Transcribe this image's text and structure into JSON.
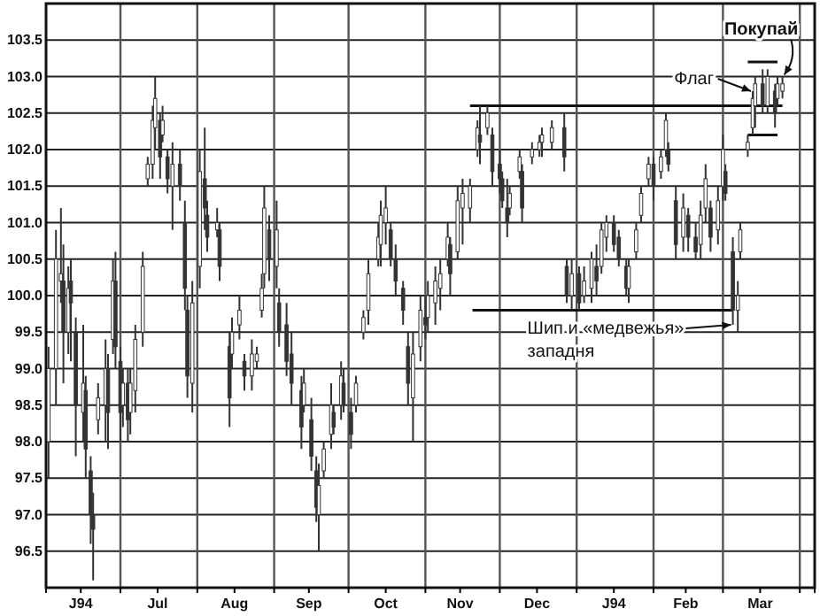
{
  "chart_data": {
    "type": "candlestick",
    "x": [
      "1993-06-02",
      "1993-06-05",
      "1993-06-07",
      "1993-06-08",
      "1993-06-10",
      "1993-06-11",
      "1993-06-13",
      "1993-06-16",
      "1993-06-17",
      "1993-06-19",
      "1993-06-20",
      "1993-06-22",
      "1993-06-25",
      "1993-06-26",
      "1993-06-28",
      "1993-06-29",
      "1993-07-01",
      "1993-07-02",
      "1993-07-04",
      "1993-07-05",
      "1993-07-07",
      "1993-07-10",
      "1993-07-12",
      "1993-07-14",
      "1993-07-15",
      "1993-07-17",
      "1993-07-18",
      "1993-07-20",
      "1993-07-22",
      "1993-07-25",
      "1993-07-27",
      "1993-07-28",
      "1993-07-30",
      "1993-08-02",
      "1993-08-04",
      "1993-08-05",
      "1993-08-09",
      "1993-08-10",
      "1993-08-14",
      "1993-08-15",
      "1993-08-18",
      "1993-08-20",
      "1993-08-23",
      "1993-08-25",
      "1993-08-27",
      "1993-08-28",
      "1993-08-30",
      "1993-09-02",
      "1993-09-03",
      "1993-09-06",
      "1993-09-08",
      "1993-09-12",
      "1993-09-13",
      "1993-09-16",
      "1993-09-18",
      "1993-09-19",
      "1993-09-21",
      "1993-09-24",
      "1993-09-25",
      "1993-09-28",
      "1993-09-29",
      "1993-10-02",
      "1993-10-04",
      "1993-10-07",
      "1993-10-09",
      "1993-10-13",
      "1993-10-14",
      "1993-10-16",
      "1993-10-18",
      "1993-10-20",
      "1993-10-23",
      "1993-10-25",
      "1993-10-27",
      "1993-10-30",
      "1993-11-01",
      "1993-11-02",
      "1993-11-05",
      "1993-11-07",
      "1993-11-10",
      "1993-11-11",
      "1993-11-14",
      "1993-11-16",
      "1993-11-19",
      "1993-11-22",
      "1993-11-23",
      "1993-11-26",
      "1993-11-28",
      "1993-12-01",
      "1993-12-02",
      "1993-12-04",
      "1993-12-05",
      "1993-12-09",
      "1993-12-10",
      "1993-12-14",
      "1993-12-17",
      "1993-12-18",
      "1993-12-22",
      "1993-12-27",
      "1993-12-28",
      "1993-12-30",
      "1994-01-02",
      "1994-01-04",
      "1994-01-07",
      "1994-01-09",
      "1994-01-11",
      "1994-01-13",
      "1994-01-16",
      "1994-01-18",
      "1994-01-21",
      "1994-01-22",
      "1994-01-25",
      "1994-01-27",
      "1994-01-30",
      "1994-02-01",
      "1994-02-04",
      "1994-02-06",
      "1994-02-07",
      "1994-02-10",
      "1994-02-13",
      "1994-02-15",
      "1994-02-18",
      "1994-02-20",
      "1994-02-22",
      "1994-02-24",
      "1994-02-27",
      "1994-03-01",
      "1994-03-02",
      "1994-03-05",
      "1994-03-07",
      "1994-03-08",
      "1994-03-11",
      "1994-03-13",
      "1994-03-14",
      "1994-03-17",
      "1994-03-19",
      "1994-03-22",
      "1994-03-23",
      "1994-03-25"
    ],
    "ohlc": [
      [
        98.0,
        99.3,
        97.5,
        99.0
      ],
      [
        99.0,
        100.9,
        98.5,
        100.5
      ],
      [
        100.2,
        101.2,
        99.9,
        100.3
      ],
      [
        100.2,
        100.7,
        98.8,
        99.5
      ],
      [
        99.5,
        100.4,
        99.2,
        100.1
      ],
      [
        100.2,
        100.5,
        99.1,
        99.9
      ],
      [
        99.5,
        99.7,
        97.8,
        98.5
      ],
      [
        98.4,
        99.6,
        98.0,
        98.8
      ],
      [
        98.7,
        98.9,
        97.5,
        97.9
      ],
      [
        97.6,
        97.8,
        96.6,
        97.0
      ],
      [
        97.0,
        97.3,
        96.1,
        96.8
      ],
      [
        98.3,
        98.8,
        98.1,
        98.6
      ],
      [
        98.5,
        99.4,
        98.0,
        99.0
      ],
      [
        99.0,
        99.2,
        97.9,
        98.4
      ],
      [
        99.4,
        100.5,
        99.2,
        100.2
      ],
      [
        100.2,
        100.6,
        99.0,
        99.3
      ],
      [
        99.1,
        99.3,
        98.0,
        98.4
      ],
      [
        98.5,
        99.0,
        98.2,
        98.8
      ],
      [
        98.8,
        99.0,
        98.0,
        98.3
      ],
      [
        98.4,
        99.0,
        98.1,
        98.8
      ],
      [
        98.7,
        99.6,
        98.4,
        99.4
      ],
      [
        99.5,
        100.6,
        99.3,
        100.4
      ],
      [
        101.6,
        101.9,
        101.5,
        101.8
      ],
      [
        101.8,
        102.6,
        101.6,
        102.4
      ],
      [
        102.3,
        103.0,
        102.0,
        102.7
      ],
      [
        102.4,
        102.5,
        101.6,
        101.9
      ],
      [
        102.2,
        102.6,
        102.1,
        102.4
      ],
      [
        101.9,
        102.0,
        101.4,
        101.6
      ],
      [
        101.5,
        102.1,
        100.9,
        101.8
      ],
      [
        101.8,
        102.0,
        101.3,
        101.5
      ],
      [
        101.0,
        101.3,
        99.8,
        100.1
      ],
      [
        99.8,
        100.0,
        98.6,
        98.9
      ],
      [
        98.8,
        100.2,
        98.4,
        99.9
      ],
      [
        100.4,
        102.0,
        100.1,
        101.7
      ],
      [
        101.6,
        102.3,
        100.9,
        101.2
      ],
      [
        101.1,
        101.3,
        100.6,
        100.8
      ],
      [
        100.9,
        101.2,
        100.8,
        101.0
      ],
      [
        100.9,
        101.0,
        100.2,
        100.4
      ],
      [
        99.3,
        99.5,
        98.2,
        98.6
      ],
      [
        99.2,
        99.7,
        99.0,
        99.5
      ],
      [
        99.6,
        100.0,
        99.4,
        99.8
      ],
      [
        99.1,
        99.2,
        98.7,
        98.9
      ],
      [
        98.9,
        99.4,
        98.7,
        99.2
      ],
      [
        99.1,
        99.3,
        99.0,
        99.2
      ],
      [
        99.8,
        100.3,
        99.7,
        100.1
      ],
      [
        100.3,
        101.5,
        100.1,
        101.2
      ],
      [
        100.9,
        101.1,
        100.2,
        100.5
      ],
      [
        100.4,
        101.3,
        100.1,
        100.9
      ],
      [
        99.9,
        100.1,
        99.3,
        99.5
      ],
      [
        99.6,
        99.9,
        98.9,
        99.1
      ],
      [
        99.2,
        99.5,
        98.5,
        98.8
      ],
      [
        98.7,
        98.9,
        97.9,
        98.2
      ],
      [
        98.5,
        99.0,
        98.4,
        98.8
      ],
      [
        98.3,
        98.6,
        97.6,
        97.8
      ],
      [
        97.6,
        97.8,
        96.9,
        97.1
      ],
      [
        97.0,
        97.7,
        96.5,
        97.4
      ],
      [
        97.6,
        98.0,
        97.5,
        97.9
      ],
      [
        98.1,
        98.8,
        97.9,
        98.5
      ],
      [
        98.4,
        98.5,
        98.1,
        98.2
      ],
      [
        98.5,
        99.1,
        98.3,
        98.9
      ],
      [
        98.8,
        99.0,
        98.4,
        98.5
      ],
      [
        98.4,
        98.6,
        97.9,
        98.1
      ],
      [
        98.5,
        98.9,
        98.4,
        98.8
      ],
      [
        99.5,
        99.8,
        99.4,
        99.7
      ],
      [
        99.8,
        100.5,
        99.6,
        100.3
      ],
      [
        100.5,
        101.0,
        100.4,
        100.8
      ],
      [
        100.7,
        101.3,
        100.4,
        101.1
      ],
      [
        101.0,
        101.5,
        100.7,
        101.2
      ],
      [
        100.9,
        101.0,
        100.4,
        100.5
      ],
      [
        100.5,
        100.7,
        100.0,
        100.2
      ],
      [
        100.1,
        100.2,
        99.6,
        99.8
      ],
      [
        99.3,
        99.5,
        98.5,
        98.8
      ],
      [
        98.6,
        99.5,
        98.0,
        99.2
      ],
      [
        99.3,
        100.0,
        99.1,
        99.8
      ],
      [
        99.7,
        100.0,
        99.4,
        99.6
      ],
      [
        99.7,
        100.2,
        99.5,
        100.0
      ],
      [
        99.9,
        100.4,
        99.6,
        100.2
      ],
      [
        100.1,
        100.5,
        99.8,
        100.3
      ],
      [
        100.5,
        101.0,
        100.4,
        100.8
      ],
      [
        100.7,
        100.8,
        100.0,
        100.3
      ],
      [
        100.6,
        101.5,
        100.5,
        101.3
      ],
      [
        101.2,
        101.6,
        100.7,
        101.4
      ],
      [
        101.2,
        101.6,
        101.0,
        101.5
      ],
      [
        102.0,
        102.4,
        101.9,
        102.3
      ],
      [
        102.2,
        102.6,
        101.8,
        102.1
      ],
      [
        102.3,
        102.6,
        102.2,
        102.5
      ],
      [
        102.2,
        102.3,
        101.5,
        101.7
      ],
      [
        101.8,
        102.0,
        101.4,
        101.6
      ],
      [
        101.6,
        101.7,
        101.2,
        101.3
      ],
      [
        101.2,
        101.6,
        100.8,
        101.0
      ],
      [
        101.2,
        101.5,
        101.1,
        101.4
      ],
      [
        101.7,
        102.0,
        101.6,
        101.9
      ],
      [
        101.7,
        101.8,
        101.0,
        101.2
      ],
      [
        101.9,
        102.1,
        101.8,
        102.0
      ],
      [
        102.0,
        102.2,
        101.9,
        102.1
      ],
      [
        102.1,
        102.3,
        101.9,
        102.2
      ],
      [
        102.1,
        102.4,
        102.0,
        102.3
      ],
      [
        102.3,
        102.5,
        101.7,
        101.9
      ],
      [
        100.4,
        100.5,
        99.9,
        100.0
      ],
      [
        100.0,
        100.5,
        99.8,
        100.3
      ],
      [
        100.3,
        100.4,
        99.8,
        99.9
      ],
      [
        100.0,
        100.4,
        99.9,
        100.2
      ],
      [
        100.1,
        100.6,
        99.9,
        100.5
      ],
      [
        100.4,
        100.7,
        100.0,
        100.2
      ],
      [
        100.4,
        101.0,
        100.3,
        100.9
      ],
      [
        100.8,
        101.1,
        100.6,
        101.0
      ],
      [
        101.0,
        101.1,
        100.6,
        100.7
      ],
      [
        100.8,
        100.9,
        100.4,
        100.5
      ],
      [
        100.4,
        100.5,
        100.0,
        100.1
      ],
      [
        100.1,
        100.5,
        99.9,
        100.4
      ],
      [
        100.6,
        101.0,
        100.5,
        100.9
      ],
      [
        101.1,
        101.5,
        101.0,
        101.4
      ],
      [
        101.6,
        101.9,
        101.5,
        101.8
      ],
      [
        101.8,
        101.9,
        101.3,
        101.5
      ],
      [
        101.7,
        102.0,
        101.6,
        101.9
      ],
      [
        102.0,
        102.5,
        101.9,
        102.4
      ],
      [
        102.0,
        102.1,
        101.7,
        101.8
      ],
      [
        101.3,
        101.5,
        100.5,
        100.7
      ],
      [
        100.8,
        101.4,
        100.6,
        101.2
      ],
      [
        101.1,
        101.2,
        100.6,
        100.8
      ],
      [
        100.8,
        101.0,
        100.5,
        100.6
      ],
      [
        100.7,
        101.3,
        100.5,
        101.1
      ],
      [
        101.2,
        101.8,
        101.0,
        101.6
      ],
      [
        101.2,
        101.3,
        100.6,
        100.8
      ],
      [
        100.9,
        101.5,
        100.7,
        101.3
      ],
      [
        101.5,
        102.2,
        101.3,
        102.0
      ],
      [
        101.7,
        101.8,
        101.3,
        101.4
      ],
      [
        100.6,
        100.8,
        99.6,
        99.8
      ],
      [
        99.8,
        100.2,
        99.5,
        100.0
      ],
      [
        100.6,
        101.0,
        100.5,
        100.9
      ],
      [
        102.0,
        102.2,
        101.9,
        102.1
      ],
      [
        102.3,
        102.8,
        102.2,
        102.7
      ],
      [
        102.6,
        103.0,
        102.3,
        102.9
      ],
      [
        102.9,
        103.1,
        102.5,
        102.6
      ],
      [
        102.6,
        103.1,
        102.5,
        103.0
      ],
      [
        102.8,
        102.9,
        102.3,
        102.5
      ],
      [
        102.7,
        103.0,
        102.6,
        102.9
      ],
      [
        102.8,
        103.0,
        102.7,
        102.9
      ]
    ],
    "color": "#333333",
    "series": [
      {
        "type": "line",
        "x": [
          "1993-11-19",
          "1994-03-25"
        ],
        "values": [
          102.6,
          102.6
        ],
        "color": "#111111"
      },
      {
        "type": "line",
        "x": [
          "1993-11-20",
          "1994-03-05"
        ],
        "values": [
          99.8,
          99.8
        ],
        "color": "#111111"
      },
      {
        "type": "line",
        "x": [
          "1994-03-11",
          "1994-03-23"
        ],
        "values": [
          103.2,
          103.2
        ],
        "color": "#111111"
      },
      {
        "type": "line",
        "x": [
          "1994-03-11",
          "1994-03-23"
        ],
        "values": [
          102.2,
          102.2
        ],
        "color": "#111111"
      }
    ],
    "xlim": [
      "1993-06-01",
      "1994-04-07"
    ],
    "xticks": [
      {
        "value": "1993-06-15",
        "label": "J94"
      },
      {
        "value": "1993-07-01",
        "label": null
      },
      {
        "value": "1993-07-16",
        "label": "Jul"
      },
      {
        "value": "1993-08-01",
        "label": null
      },
      {
        "value": "1993-08-16",
        "label": "Aug"
      },
      {
        "value": "1993-09-01",
        "label": null
      },
      {
        "value": "1993-09-15",
        "label": "Sep"
      },
      {
        "value": "1993-10-01",
        "label": null
      },
      {
        "value": "1993-10-16",
        "label": "Oct"
      },
      {
        "value": "1993-11-01",
        "label": null
      },
      {
        "value": "1993-11-15",
        "label": "Nov"
      },
      {
        "value": "1993-12-01",
        "label": null
      },
      {
        "value": "1993-12-16",
        "label": "Dec"
      },
      {
        "value": "1994-01-01",
        "label": null
      },
      {
        "value": "1994-01-16",
        "label": "J94"
      },
      {
        "value": "1994-02-01",
        "label": null
      },
      {
        "value": "1994-02-14",
        "label": "Feb"
      },
      {
        "value": "1994-03-01",
        "label": null
      },
      {
        "value": "1994-03-16",
        "label": "Mar"
      },
      {
        "value": "1994-04-01",
        "label": null
      }
    ],
    "ylim": [
      96,
      104
    ],
    "yticks": [
      96.5,
      {
        "value": 97,
        "label": "97.0"
      },
      97.5,
      {
        "value": 98,
        "label": "98.0"
      },
      98.5,
      {
        "value": 99,
        "label": "99.0"
      },
      99.5,
      {
        "value": 100,
        "label": "100.0"
      },
      100.5,
      {
        "value": 101,
        "label": "101.0"
      },
      101.5,
      {
        "value": 102,
        "label": "102.0"
      },
      102.5,
      {
        "value": 103,
        "label": "103.0"
      },
      103.5
    ],
    "grid": true,
    "annotations": [
      {
        "text": "Флаг",
        "x": "1994-03-13",
        "y": 102.8
      },
      {
        "text": "Покупай",
        "x": "1994-03-25",
        "y": 103.0
      },
      {
        "text": "Шип и «медвежья»\nзападня",
        "x": "1994-03-05",
        "y": 99.6
      }
    ]
  }
}
